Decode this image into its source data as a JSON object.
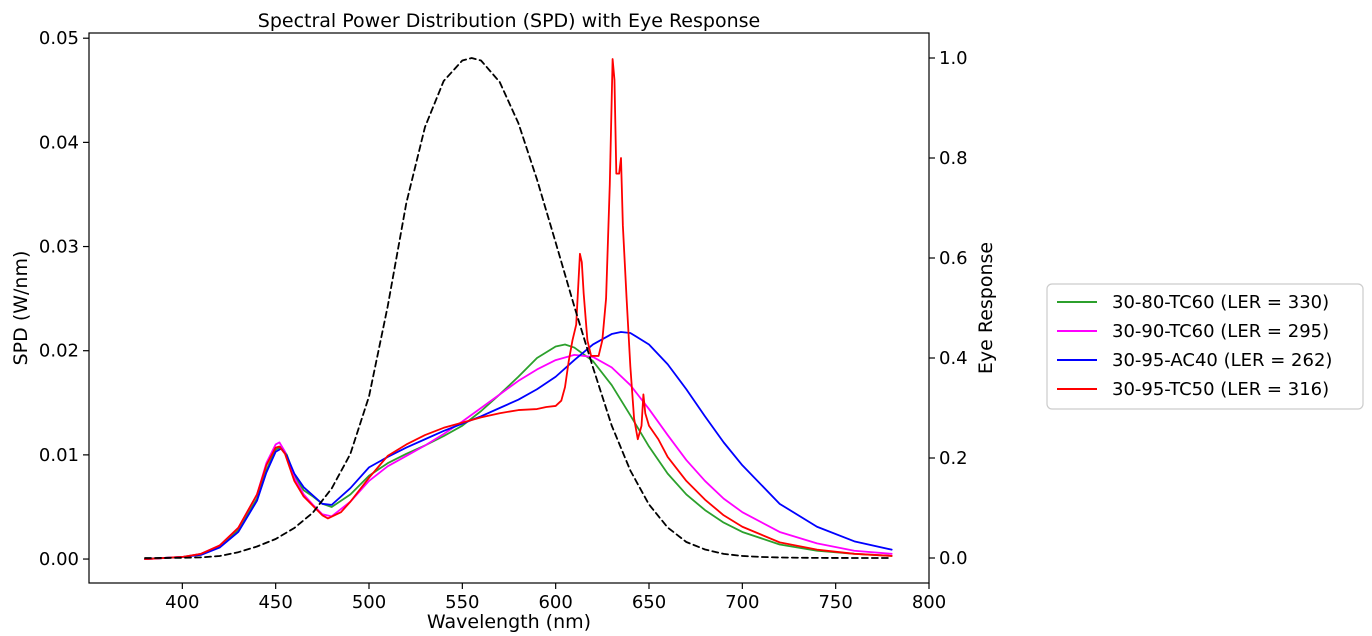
{
  "chart_data": {
    "type": "line",
    "title": "Spectral Power Distribution (SPD) with Eye Response",
    "xlabel": "Wavelength (nm)",
    "ylabel": "SPD (W/nm)",
    "y2label": "Eye Response",
    "xlim": [
      350,
      800
    ],
    "ylim": [
      -0.0023,
      0.0505
    ],
    "y2lim": [
      -0.05,
      1.05
    ],
    "xticks": [
      400,
      450,
      500,
      550,
      600,
      650,
      700,
      750,
      800
    ],
    "xtick_labels": [
      "400",
      "450",
      "500",
      "550",
      "600",
      "650",
      "700",
      "750",
      "800"
    ],
    "yticks": [
      0.0,
      0.01,
      0.02,
      0.03,
      0.04,
      0.05
    ],
    "ytick_labels": [
      "0.00",
      "0.01",
      "0.02",
      "0.03",
      "0.04",
      "0.05"
    ],
    "y2ticks": [
      0.0,
      0.2,
      0.4,
      0.6,
      0.8,
      1.0
    ],
    "y2tick_labels": [
      "0.0",
      "0.2",
      "0.4",
      "0.6",
      "0.8",
      "1.0"
    ],
    "grid": false,
    "legend_position": "outside-right",
    "series": [
      {
        "name": "30-80-TC60 (LER = 330)",
        "color": "#2ca02c",
        "axis": "left",
        "x": [
          380,
          400,
          410,
          420,
          430,
          440,
          445,
          450,
          453,
          456,
          460,
          465,
          470,
          475,
          480,
          490,
          500,
          510,
          520,
          530,
          540,
          550,
          560,
          570,
          580,
          590,
          600,
          605,
          610,
          620,
          630,
          640,
          650,
          660,
          670,
          680,
          690,
          700,
          720,
          740,
          760,
          780
        ],
        "y": [
          0.0,
          0.0002,
          0.0005,
          0.0012,
          0.0028,
          0.0058,
          0.0085,
          0.0105,
          0.0108,
          0.01,
          0.008,
          0.0066,
          0.006,
          0.0053,
          0.005,
          0.0062,
          0.008,
          0.0092,
          0.0101,
          0.0109,
          0.0118,
          0.0128,
          0.0142,
          0.0158,
          0.0175,
          0.0193,
          0.0204,
          0.0206,
          0.0203,
          0.019,
          0.0167,
          0.0138,
          0.0108,
          0.0082,
          0.0062,
          0.0047,
          0.0035,
          0.0026,
          0.0014,
          0.0008,
          0.0005,
          0.0003
        ]
      },
      {
        "name": "30-90-TC60 (LER = 295)",
        "color": "#ff00ff",
        "axis": "left",
        "x": [
          380,
          400,
          410,
          420,
          430,
          440,
          445,
          450,
          452,
          455,
          460,
          465,
          470,
          475,
          480,
          490,
          500,
          510,
          520,
          530,
          540,
          550,
          560,
          570,
          580,
          590,
          600,
          610,
          620,
          630,
          640,
          650,
          660,
          670,
          680,
          690,
          700,
          720,
          740,
          760,
          780
        ],
        "y": [
          0.0,
          0.0002,
          0.0005,
          0.0013,
          0.003,
          0.0062,
          0.0092,
          0.011,
          0.0112,
          0.0103,
          0.0078,
          0.0062,
          0.0052,
          0.0043,
          0.0041,
          0.0055,
          0.0075,
          0.0089,
          0.0099,
          0.0109,
          0.012,
          0.0132,
          0.0145,
          0.0158,
          0.0171,
          0.0182,
          0.0191,
          0.0196,
          0.0194,
          0.0184,
          0.0167,
          0.0144,
          0.0119,
          0.0095,
          0.0075,
          0.0058,
          0.0045,
          0.0026,
          0.0015,
          0.0008,
          0.0005
        ]
      },
      {
        "name": "30-95-AC40 (LER = 262)",
        "color": "#0000ff",
        "axis": "left",
        "x": [
          380,
          400,
          410,
          420,
          430,
          440,
          445,
          450,
          453,
          456,
          460,
          465,
          470,
          475,
          480,
          490,
          500,
          510,
          520,
          530,
          540,
          550,
          560,
          570,
          580,
          590,
          600,
          610,
          620,
          630,
          635,
          640,
          650,
          660,
          670,
          680,
          690,
          700,
          720,
          740,
          760,
          780
        ],
        "y": [
          0.0,
          0.0002,
          0.0004,
          0.0011,
          0.0026,
          0.0056,
          0.0083,
          0.0103,
          0.0106,
          0.0099,
          0.0082,
          0.0069,
          0.0061,
          0.0053,
          0.0052,
          0.0068,
          0.0088,
          0.0098,
          0.0107,
          0.0115,
          0.0123,
          0.013,
          0.0137,
          0.0145,
          0.0153,
          0.0163,
          0.0175,
          0.0191,
          0.0206,
          0.0216,
          0.0218,
          0.0217,
          0.0206,
          0.0187,
          0.0163,
          0.0137,
          0.0112,
          0.009,
          0.0053,
          0.0031,
          0.0017,
          0.0009
        ]
      },
      {
        "name": "30-95-TC50 (LER = 316)",
        "color": "#ff0000",
        "axis": "left",
        "x": [
          380,
          400,
          410,
          420,
          430,
          440,
          445,
          450,
          452,
          455,
          460,
          465,
          470,
          475,
          478,
          485,
          490,
          500,
          510,
          520,
          530,
          540,
          550,
          560,
          570,
          580,
          590,
          595,
          600,
          603,
          605,
          607,
          609,
          611,
          613,
          614,
          615,
          617,
          619,
          621,
          623,
          625,
          627,
          629,
          630.5,
          631.5,
          632.5,
          634,
          635,
          636,
          638,
          640,
          642,
          644,
          646,
          647,
          648,
          650,
          655,
          660,
          670,
          680,
          690,
          700,
          720,
          740,
          760,
          780
        ],
        "y": [
          0.0,
          0.0002,
          0.0005,
          0.0013,
          0.003,
          0.0062,
          0.009,
          0.0107,
          0.0108,
          0.0101,
          0.0075,
          0.006,
          0.0051,
          0.0042,
          0.0039,
          0.0045,
          0.0055,
          0.0078,
          0.0099,
          0.011,
          0.0119,
          0.0126,
          0.0131,
          0.0136,
          0.014,
          0.0143,
          0.0144,
          0.0146,
          0.0147,
          0.0152,
          0.0165,
          0.019,
          0.021,
          0.0225,
          0.0293,
          0.0285,
          0.0255,
          0.021,
          0.0195,
          0.0195,
          0.0195,
          0.021,
          0.025,
          0.036,
          0.048,
          0.046,
          0.037,
          0.037,
          0.0385,
          0.032,
          0.025,
          0.0185,
          0.0135,
          0.0115,
          0.0128,
          0.0158,
          0.014,
          0.0128,
          0.0115,
          0.0098,
          0.0075,
          0.0057,
          0.0042,
          0.0031,
          0.0016,
          0.0009,
          0.0005,
          0.0003
        ]
      },
      {
        "name": "",
        "color": "#000000",
        "dashed": true,
        "axis": "right",
        "x": [
          380,
          390,
          400,
          410,
          420,
          430,
          440,
          450,
          460,
          470,
          480,
          490,
          500,
          510,
          520,
          530,
          540,
          550,
          555,
          560,
          570,
          580,
          590,
          600,
          610,
          620,
          630,
          640,
          650,
          660,
          670,
          680,
          690,
          700,
          710,
          720,
          730,
          740,
          750,
          760,
          770,
          780
        ],
        "y": [
          0.0,
          0.0001,
          0.0004,
          0.0012,
          0.004,
          0.0116,
          0.023,
          0.038,
          0.06,
          0.091,
          0.139,
          0.208,
          0.323,
          0.503,
          0.71,
          0.862,
          0.954,
          0.995,
          1.0,
          0.995,
          0.952,
          0.87,
          0.757,
          0.631,
          0.503,
          0.381,
          0.265,
          0.175,
          0.107,
          0.061,
          0.032,
          0.017,
          0.0082,
          0.0041,
          0.0021,
          0.00105,
          0.00052,
          0.00025,
          0.00012,
          6e-05,
          3e-05,
          1.5e-05
        ]
      }
    ]
  }
}
